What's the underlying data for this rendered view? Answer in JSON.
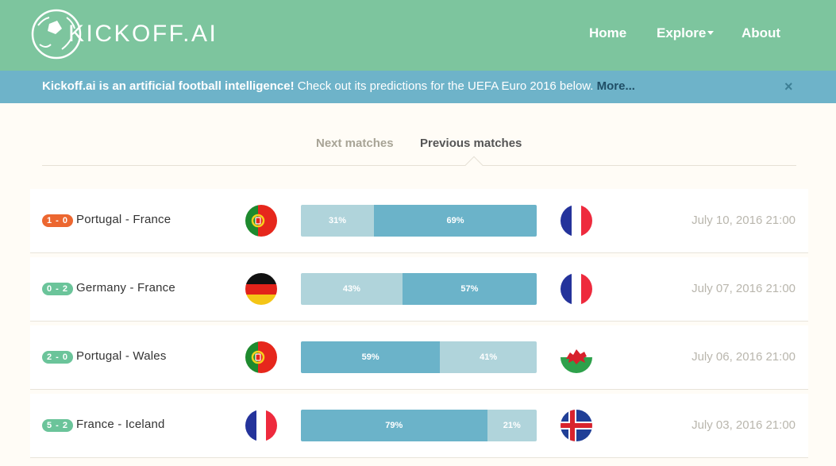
{
  "header": {
    "logo_text": "KICKOFF.AI",
    "nav": {
      "home": "Home",
      "explore": "Explore",
      "about": "About"
    }
  },
  "banner": {
    "bold_text": "Kickoff.ai is an artificial football intelligence!",
    "text": " Check out its predictions for the UEFA Euro 2016 below. ",
    "more_link": "More...",
    "close": "×"
  },
  "tabs": {
    "next": "Next matches",
    "previous": "Previous matches",
    "active": "previous"
  },
  "matches": [
    {
      "score": "1 - 0",
      "score_type": "loss",
      "teams": "Portugal - France",
      "home_flag": "portugal-flag-icon",
      "away_flag": "france-flag-icon",
      "home_pct": "31%",
      "away_pct": "69%",
      "home_value": 31,
      "away_value": 69,
      "date": "July 10, 2016 21:00"
    },
    {
      "score": "0 - 2",
      "score_type": "win",
      "teams": "Germany - France",
      "home_flag": "germany-flag-icon",
      "away_flag": "france-flag-icon",
      "home_pct": "43%",
      "away_pct": "57%",
      "home_value": 43,
      "away_value": 57,
      "date": "July 07, 2016 21:00"
    },
    {
      "score": "2 - 0",
      "score_type": "win",
      "teams": "Portugal - Wales",
      "home_flag": "portugal-flag-icon",
      "away_flag": "wales-flag-icon",
      "home_pct": "59%",
      "away_pct": "41%",
      "home_value": 59,
      "away_value": 41,
      "date": "July 06, 2016 21:00"
    },
    {
      "score": "5 - 2",
      "score_type": "win",
      "teams": "France - Iceland",
      "home_flag": "france-flag-icon",
      "away_flag": "iceland-flag-icon",
      "home_pct": "79%",
      "away_pct": "21%",
      "home_value": 79,
      "away_value": 21,
      "date": "July 03, 2016 21:00"
    }
  ],
  "colors": {
    "header": "#7dc59e",
    "banner": "#6eb3c9",
    "bar_dark": "#6bb3c9",
    "bar_light": "#b0d4db",
    "loss_badge": "#ec6730",
    "win_badge": "#6bc49a"
  }
}
